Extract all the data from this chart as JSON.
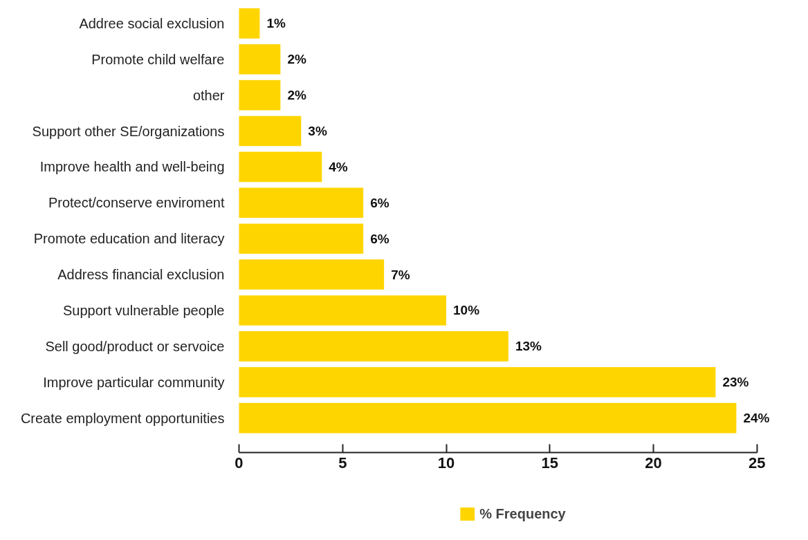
{
  "chart_data": {
    "type": "bar",
    "orientation": "horizontal",
    "categories": [
      "Addree social exclusion",
      "Promote child welfare",
      "other",
      "Support other SE/organizations",
      "Improve health and well-being",
      "Protect/conserve enviroment",
      "Promote education and literacy",
      "Address financial exclusion",
      "Support vulnerable people",
      "Sell good/product or servoice",
      "Improve particular community",
      "Create employment opportunities"
    ],
    "series": [
      {
        "name": "% Frequency",
        "color": "#ffd500",
        "values": [
          1,
          2,
          2,
          3,
          4,
          6,
          6,
          7,
          10,
          13,
          23,
          24
        ],
        "value_labels": [
          "1%",
          "2%",
          "2%",
          "3%",
          "4%",
          "6%",
          "6%",
          "7%",
          "10%",
          "13%",
          "23%",
          "24%"
        ]
      }
    ],
    "xlim": [
      0,
      25
    ],
    "xticks": [
      0,
      5,
      10,
      15,
      20,
      25
    ],
    "grid": false,
    "legend": "bottom"
  }
}
